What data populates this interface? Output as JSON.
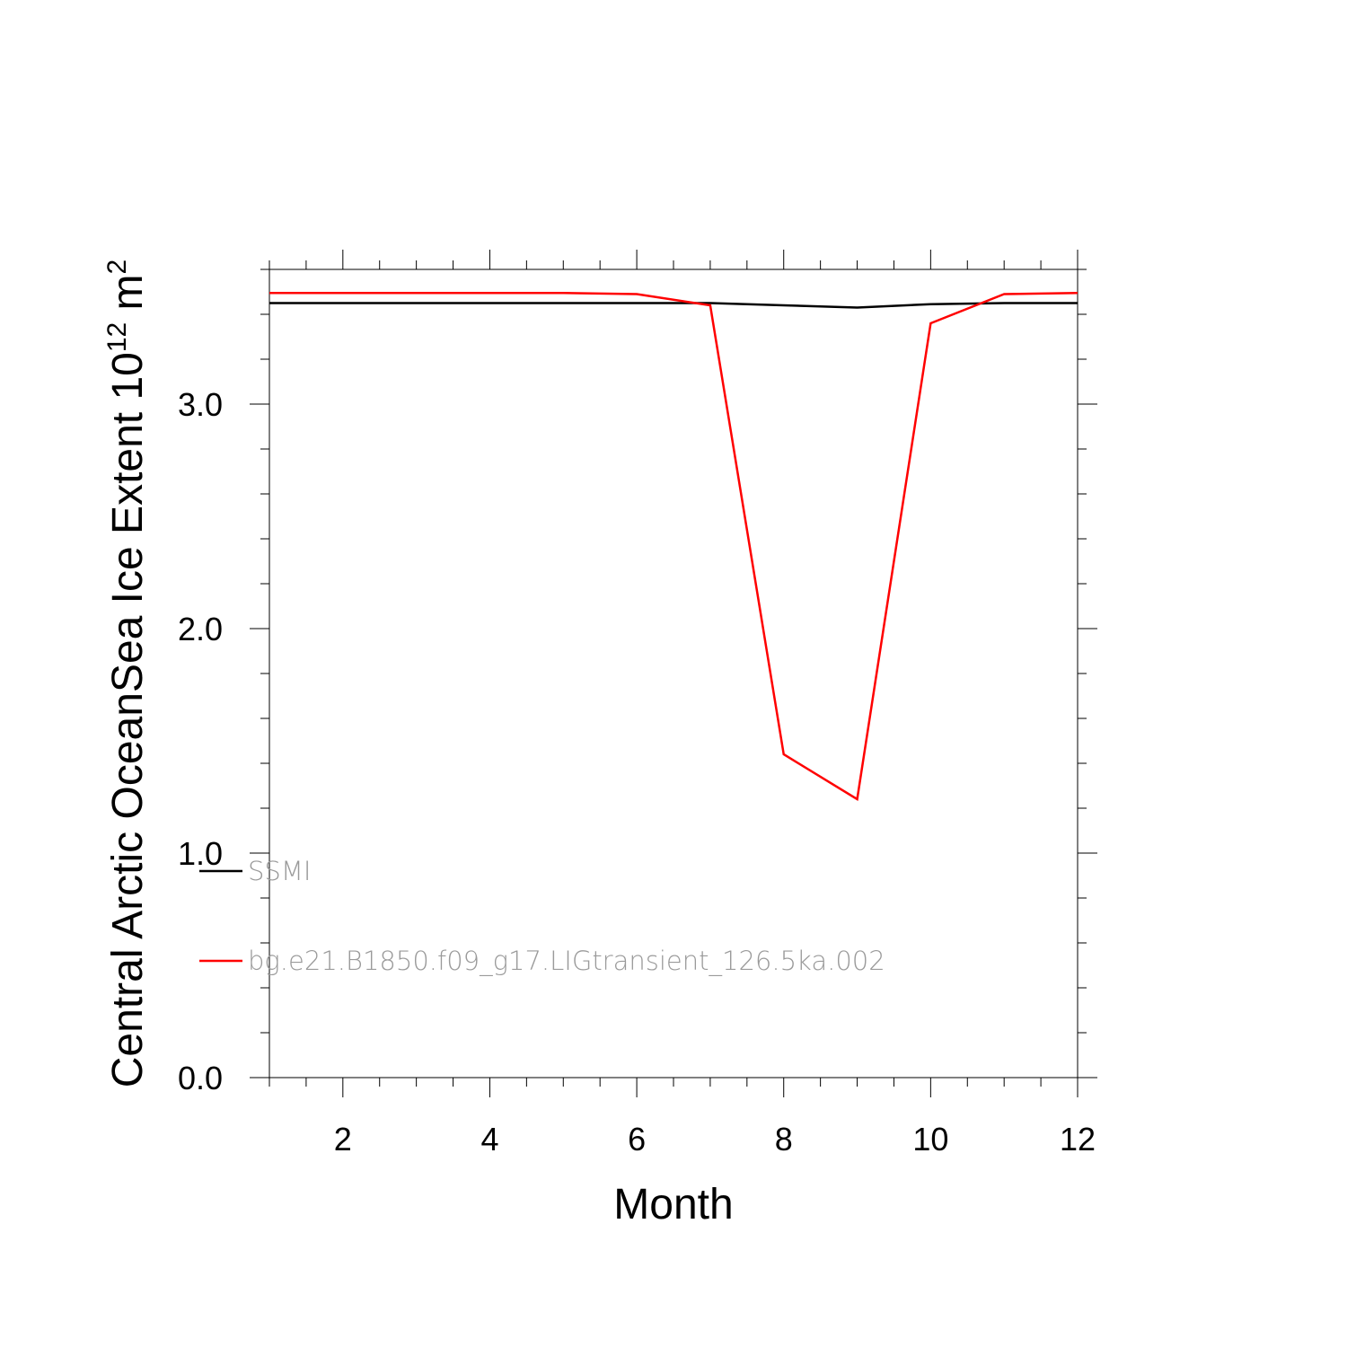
{
  "chart_data": {
    "type": "line",
    "xlabel": "Month",
    "ylabel": "Central Arctic OceanSea Ice Extent 10",
    "ylabel_sup": "12",
    "ylabel_unit": " m",
    "ylabel_unit_sup": "2",
    "xlim": [
      1,
      12
    ],
    "ylim": [
      0,
      3.6
    ],
    "x_major_ticks": [
      2,
      4,
      6,
      8,
      10,
      12
    ],
    "y_major_ticks": [
      0.0,
      1.0,
      2.0,
      3.0
    ],
    "y_tick_labels": [
      "0.0",
      "1.0",
      "2.0",
      "3.0"
    ],
    "x_tick_labels": [
      "2",
      "4",
      "6",
      "8",
      "10",
      "12"
    ],
    "grid": false,
    "legend_position": "bottom-left-inside",
    "x": [
      1,
      2,
      3,
      4,
      5,
      6,
      7,
      8,
      9,
      10,
      11,
      12
    ],
    "series": [
      {
        "name": "SSMI",
        "color": "#000000",
        "values": [
          3.45,
          3.45,
          3.45,
          3.45,
          3.45,
          3.45,
          3.45,
          3.44,
          3.43,
          3.445,
          3.45,
          3.45
        ]
      },
      {
        "name": "bg.e21.B1850.f09_g17.LIGtransient_126.5ka.002",
        "color": "#ff0000",
        "values": [
          3.495,
          3.495,
          3.495,
          3.495,
          3.495,
          3.49,
          3.44,
          1.44,
          1.24,
          3.36,
          3.49,
          3.495
        ]
      }
    ]
  }
}
